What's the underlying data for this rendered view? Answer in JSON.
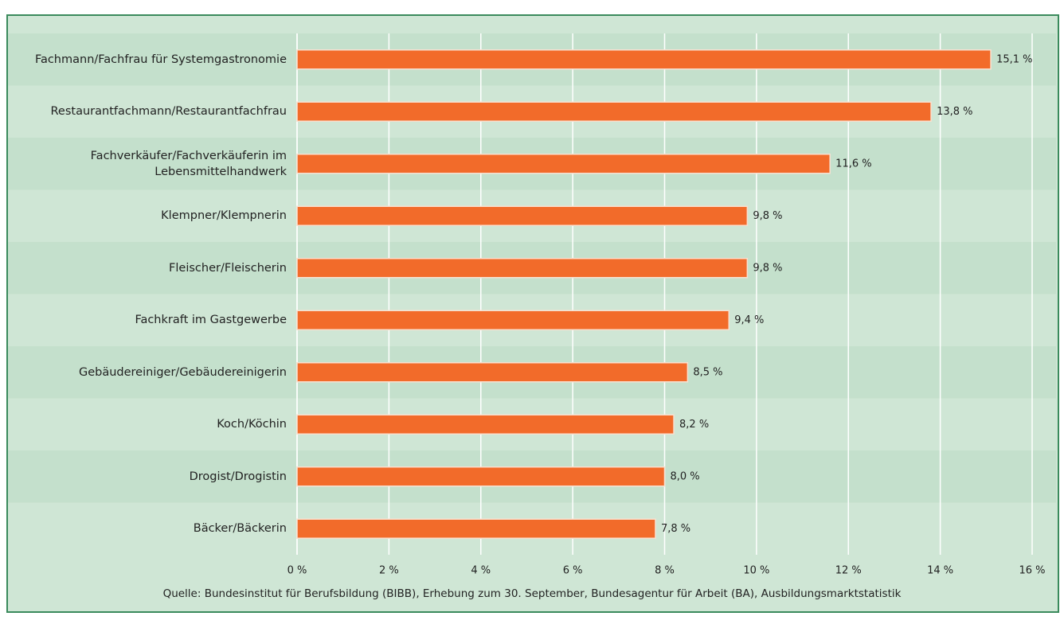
{
  "chart_data": {
    "type": "barh",
    "categories": [
      "Fachmann/Fachfrau für Systemgastronomie",
      "Restaurantfachmann/Restaurantfachfrau",
      "Fachverkäufer/Fachverkäuferin im Lebensmittelhandwerk",
      "Klempner/Klempnerin",
      "Fleischer/Fleischerin",
      "Fachkraft im Gastgewerbe",
      "Gebäudereiniger/Gebäudereinigerin",
      "Koch/Köchin",
      "Drogist/Drogistin",
      "Bäcker/Bäckerin"
    ],
    "values": [
      15.1,
      13.8,
      11.6,
      9.8,
      9.8,
      9.4,
      8.5,
      8.2,
      8.0,
      7.8
    ],
    "value_labels": [
      "15,1 %",
      "13,8 %",
      "11,6 %",
      "9,8 %",
      "9,8 %",
      "9,4 %",
      "8,5 %",
      "8,2 %",
      "8,0 %",
      "7,8 %"
    ],
    "color": "#f26b2a",
    "xlim": [
      0,
      16
    ],
    "xticks": [
      {
        "value": 0,
        "label": "0 %"
      },
      {
        "value": 2,
        "label": "2 %"
      },
      {
        "value": 4,
        "label": "4 %"
      },
      {
        "value": 6,
        "label": "6 %"
      },
      {
        "value": 8,
        "label": "8 %"
      },
      {
        "value": 10,
        "label": "10 %"
      },
      {
        "value": 12,
        "label": "12 %"
      },
      {
        "value": 14,
        "label": "14 %"
      },
      {
        "value": 16,
        "label": "16 %"
      }
    ],
    "grid": true,
    "source": "Quelle: Bundesinstitut für Berufsbildung (BIBB), Erhebung zum 30. September, Bundesagentur für Arbeit (BA), Ausbildungsmarktstatistik"
  }
}
